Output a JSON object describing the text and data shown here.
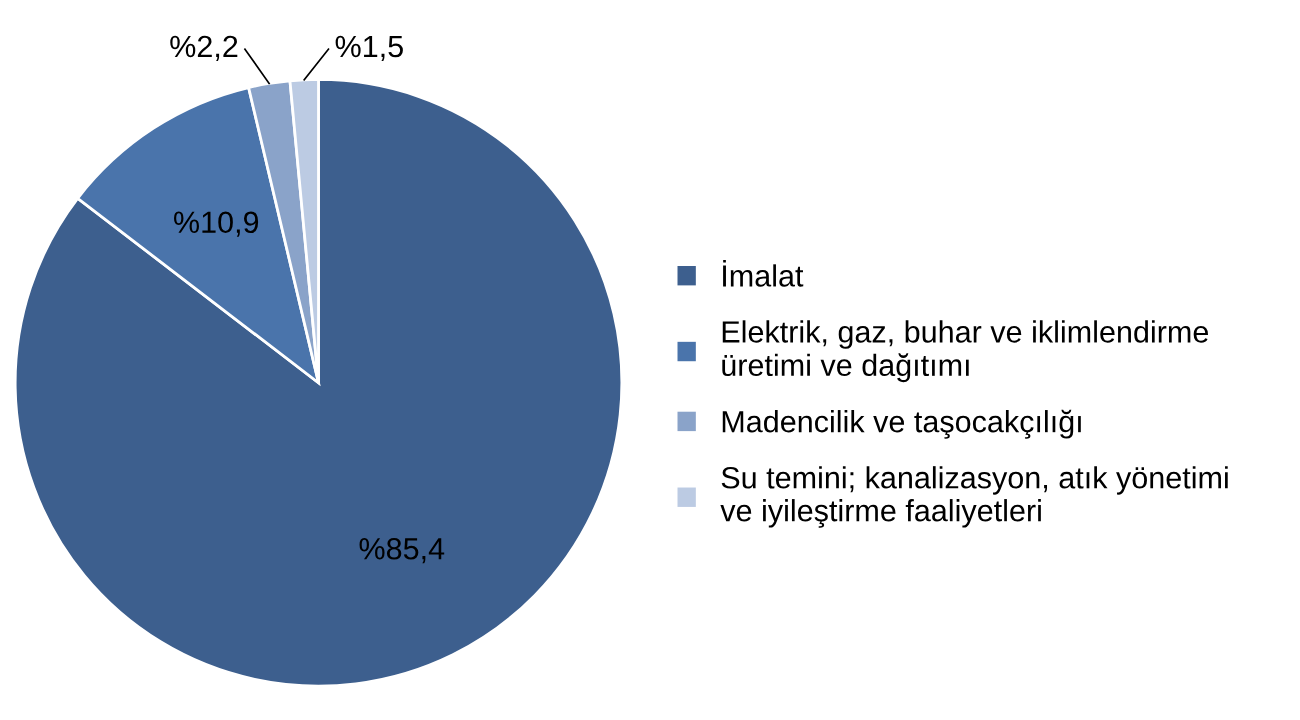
{
  "chart_data": {
    "type": "pie",
    "categories": [
      "İmalat",
      "Elektrik, gaz, buhar ve iklimlendirme\nüretimi ve dağıtımı",
      "Madencilik ve taşocakçılığı",
      "Su temini; kanalizasyon, atık yönetimi\nve iyileştirme faaliyetleri"
    ],
    "values": [
      85.4,
      10.9,
      2.2,
      1.5
    ],
    "value_labels": [
      "%85,4",
      "%10,9",
      "%2,2",
      "%1,5"
    ],
    "colors": [
      "#3d5f8e",
      "#4a74ab",
      "#8aa3c9",
      "#bccbe3"
    ],
    "legend": "right"
  }
}
